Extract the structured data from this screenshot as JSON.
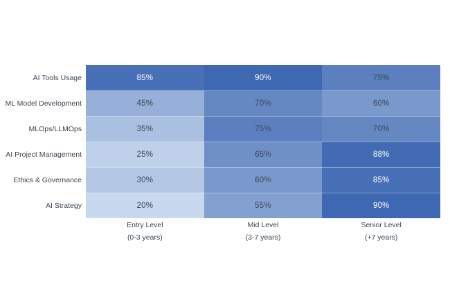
{
  "chart_data": {
    "type": "heatmap",
    "title": "",
    "rows": [
      "AI Tools Usage",
      "ML Model Development",
      "MLOps/LLMOps",
      "AI Project Management",
      "Ethics & Governance",
      "AI Strategy"
    ],
    "columns": [
      {
        "label": "Entry Level",
        "sublabel": "(0-3 years)"
      },
      {
        "label": "Mid Level",
        "sublabel": "(3-7 years)"
      },
      {
        "label": "Senior Level",
        "sublabel": "(+7 years)"
      }
    ],
    "values": [
      [
        85,
        90,
        75
      ],
      [
        45,
        70,
        60
      ],
      [
        35,
        75,
        70
      ],
      [
        25,
        65,
        88
      ],
      [
        30,
        60,
        85
      ],
      [
        20,
        55,
        90
      ]
    ],
    "value_suffix": "%",
    "layout": {
      "grid": "off",
      "legend": "none",
      "axes": "category labels only"
    },
    "color_scale": {
      "min_value": 20,
      "max_value": 90,
      "min_color": "#c8d8ee",
      "max_color": "#3e68b2"
    },
    "white_text_threshold": 80,
    "dark_text_color": "#3b4653",
    "white_text_color": "#ffffff"
  }
}
